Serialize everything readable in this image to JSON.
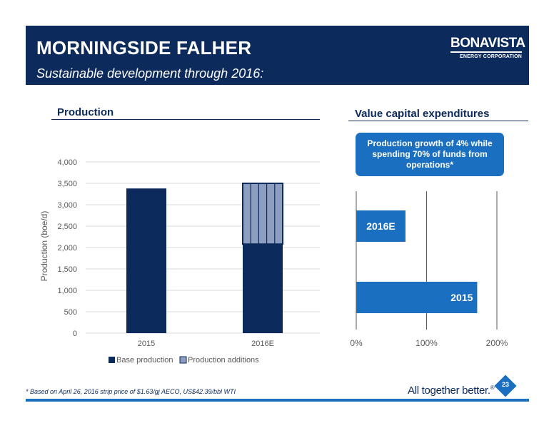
{
  "header": {
    "title": "MORNINGSIDE FALHER",
    "subtitle": "Sustainable development through 2016:",
    "logo_main": "BONAVISTA",
    "logo_sub": "ENERGY CORPORATION"
  },
  "left_section": {
    "title": "Production"
  },
  "right_section": {
    "title": "Value capital expenditures",
    "callout": "Production growth of 4% while spending 70% of funds from operations*"
  },
  "footer": {
    "footnote": "* Based on April 26, 2016 strip price of $1.63/gj AECO, US$42.39/bbl WTI",
    "tagline": "All together better.",
    "tagline_mark": "®",
    "page_number": "23"
  },
  "chart_data": [
    {
      "type": "bar",
      "stacked": true,
      "categories": [
        "2015",
        "2016E"
      ],
      "series": [
        {
          "name": "Base production",
          "values": [
            3380,
            2080
          ],
          "color": "#0c2a5b"
        },
        {
          "name": "Production additions",
          "values": [
            0,
            1420
          ],
          "color": "#8d9ec0"
        }
      ],
      "ylabel": "Production (boe/d)",
      "ylim": [
        0,
        4000
      ],
      "yticks": [
        "0",
        "500",
        "1,000",
        "1,500",
        "2,000",
        "2,500",
        "3,000",
        "3,500",
        "4,000"
      ],
      "ytick_values": [
        0,
        500,
        1000,
        1500,
        2000,
        2500,
        3000,
        3500,
        4000
      ],
      "grid": true,
      "legend": "bottom"
    },
    {
      "type": "bar",
      "orientation": "horizontal",
      "categories": [
        "2016E",
        "2015"
      ],
      "values": [
        70,
        172
      ],
      "color": "#1a6fc1",
      "xlim": [
        0,
        200
      ],
      "xticks": [
        "0%",
        "100%",
        "200%"
      ],
      "xtick_values": [
        0,
        100,
        200
      ],
      "grid": true
    }
  ]
}
